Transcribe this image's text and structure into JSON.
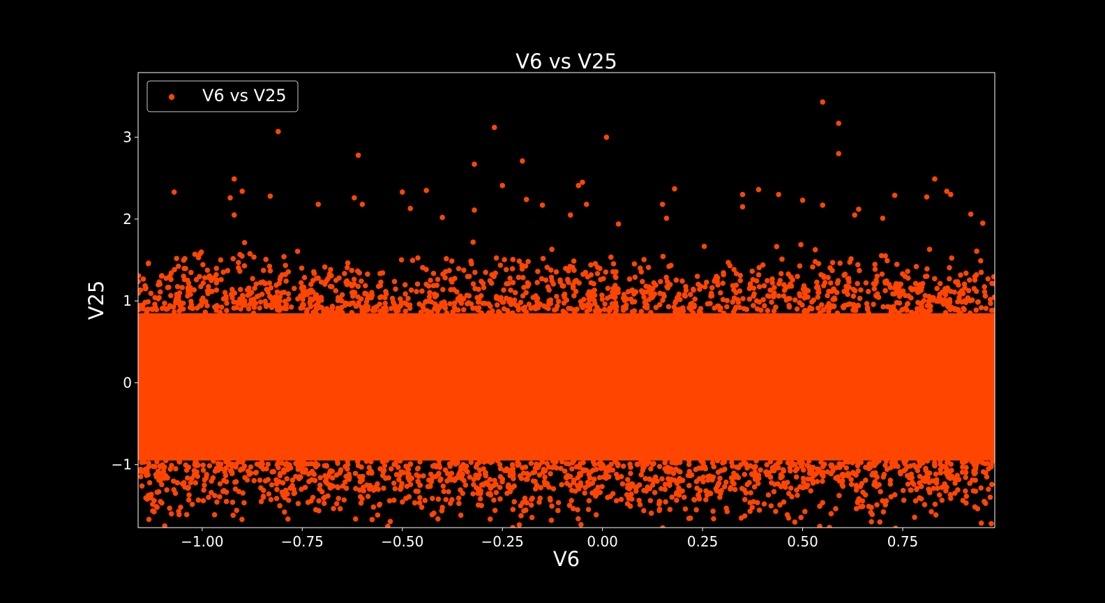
{
  "colors": {
    "background": "#000000",
    "foreground": "#ffffff",
    "series": "#ff4500"
  },
  "chart_data": {
    "type": "scatter",
    "title": "V6 vs V25",
    "xlabel": "V6",
    "ylabel": "V25",
    "xlim": [
      -1.16,
      0.98
    ],
    "ylim": [
      -1.77,
      3.79
    ],
    "x_ticks": [
      -1.0,
      -0.75,
      -0.5,
      -0.25,
      0.0,
      0.25,
      0.5,
      0.75
    ],
    "x_tick_labels": [
      "−1.00",
      "−0.75",
      "−0.50",
      "−0.25",
      "0.00",
      "0.25",
      "0.50",
      "0.75"
    ],
    "y_ticks": [
      -1,
      0,
      1,
      2,
      3
    ],
    "y_tick_labels": [
      "−1",
      "0",
      "1",
      "2",
      "3"
    ],
    "grid": false,
    "legend": {
      "position": "top-left",
      "entries": [
        "V6 vs V25"
      ]
    },
    "series": [
      {
        "name": "V6 vs V25",
        "color": "#ff4500",
        "dense_band": {
          "x_range": [
            -1.16,
            0.98
          ],
          "y_range": [
            -0.95,
            0.85
          ]
        },
        "points": [
          [
            -0.81,
            3.07
          ],
          [
            -0.27,
            3.12
          ],
          [
            0.01,
            3.0
          ],
          [
            0.55,
            3.43
          ],
          [
            0.59,
            3.17
          ],
          [
            0.59,
            2.8
          ],
          [
            -0.61,
            2.78
          ],
          [
            -0.2,
            2.71
          ],
          [
            -0.32,
            2.67
          ],
          [
            -1.07,
            2.33
          ],
          [
            -0.92,
            2.49
          ],
          [
            -0.9,
            2.34
          ],
          [
            -0.93,
            2.26
          ],
          [
            -0.83,
            2.28
          ],
          [
            -0.25,
            2.41
          ],
          [
            -0.05,
            2.45
          ],
          [
            -0.06,
            2.41
          ],
          [
            0.18,
            2.37
          ],
          [
            0.39,
            2.36
          ],
          [
            0.44,
            2.3
          ],
          [
            0.35,
            2.3
          ],
          [
            0.73,
            2.29
          ],
          [
            0.83,
            2.49
          ],
          [
            0.86,
            2.34
          ],
          [
            0.87,
            2.3
          ],
          [
            0.81,
            2.27
          ],
          [
            -0.5,
            2.33
          ],
          [
            -0.44,
            2.35
          ],
          [
            -0.62,
            2.26
          ],
          [
            -0.19,
            2.24
          ],
          [
            0.5,
            2.23
          ],
          [
            0.55,
            2.17
          ],
          [
            -0.6,
            2.18
          ],
          [
            -0.71,
            2.18
          ],
          [
            -0.48,
            2.13
          ],
          [
            -0.32,
            2.11
          ],
          [
            -0.15,
            2.17
          ],
          [
            -0.04,
            2.18
          ],
          [
            0.15,
            2.18
          ],
          [
            0.35,
            2.15
          ],
          [
            0.64,
            2.12
          ],
          [
            0.92,
            2.06
          ],
          [
            0.95,
            1.95
          ],
          [
            -0.92,
            2.05
          ],
          [
            -0.4,
            2.02
          ],
          [
            0.63,
            2.05
          ],
          [
            0.7,
            2.01
          ],
          [
            0.04,
            1.94
          ],
          [
            -0.08,
            2.05
          ],
          [
            0.16,
            2.01
          ]
        ]
      }
    ]
  }
}
